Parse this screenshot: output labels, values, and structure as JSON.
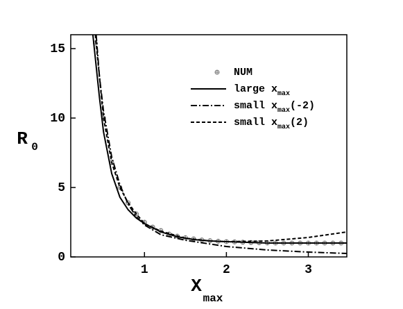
{
  "chart_data": {
    "type": "line",
    "x_label": [
      "X",
      "max"
    ],
    "y_label": [
      "R",
      "0"
    ],
    "xlim": [
      0.1,
      3.47
    ],
    "ylim": [
      0,
      16
    ],
    "xticks": [
      1,
      2,
      3
    ],
    "yticks": [
      0,
      5,
      10,
      15
    ],
    "series": [
      {
        "name": [
          "NUM"
        ],
        "color": "#000000",
        "style": "marker",
        "x": [
          0.4,
          0.5,
          0.6,
          0.7,
          0.8,
          0.9,
          1.0,
          1.1,
          1.2,
          1.3,
          1.4,
          1.5,
          1.6,
          1.7,
          1.8,
          1.9,
          2.0,
          2.1,
          2.2,
          2.3,
          2.4,
          2.5,
          2.6,
          2.7,
          2.8,
          2.9,
          3.0,
          3.1,
          3.2,
          3.3,
          3.4
        ],
        "values": [
          15.4,
          10,
          6.8,
          5.0,
          3.9,
          3.1,
          2.5,
          2.15,
          1.9,
          1.65,
          1.5,
          1.38,
          1.3,
          1.22,
          1.17,
          1.13,
          1.1,
          1.08,
          1.06,
          1.04,
          1.02,
          1.01,
          1.0,
          1.0,
          1.0,
          1.0,
          1.0,
          1.0,
          1.0,
          1.0,
          1.0
        ]
      },
      {
        "name": [
          "large x",
          "max"
        ],
        "color": "#000000",
        "style": "solid",
        "x": [
          0.37,
          0.45,
          0.5,
          0.6,
          0.7,
          0.8,
          0.9,
          1.0,
          1.2,
          1.4,
          1.6,
          1.8,
          2.0,
          2.5,
          3.0,
          3.47
        ],
        "values": [
          16,
          11.5,
          9,
          6,
          4.3,
          3.4,
          2.8,
          2.4,
          1.8,
          1.45,
          1.25,
          1.15,
          1.1,
          1.0,
          1.0,
          1.0
        ]
      },
      {
        "name": [
          "small x",
          "max",
          "(-2)"
        ],
        "color": "#000000",
        "style": "dashdot",
        "x": [
          0.41,
          0.45,
          0.5,
          0.6,
          0.7,
          0.8,
          0.9,
          1.0,
          1.2,
          1.5,
          2.0,
          2.5,
          3.0,
          3.47
        ],
        "values": [
          16,
          13,
          10.5,
          7.2,
          5.2,
          3.8,
          2.9,
          2.3,
          1.6,
          1.2,
          0.75,
          0.5,
          0.35,
          0.25
        ]
      },
      {
        "name": [
          "small x",
          "max",
          "(2)"
        ],
        "color": "#000000",
        "style": "dashed",
        "x": [
          0.4,
          0.5,
          0.6,
          0.7,
          0.8,
          0.9,
          1.0,
          1.2,
          1.5,
          1.8,
          2.0,
          2.5,
          3.0,
          3.47
        ],
        "values": [
          16,
          10,
          6.8,
          5.0,
          3.9,
          3.1,
          2.4,
          1.85,
          1.35,
          1.15,
          1.1,
          1.15,
          1.4,
          1.8
        ]
      }
    ]
  }
}
